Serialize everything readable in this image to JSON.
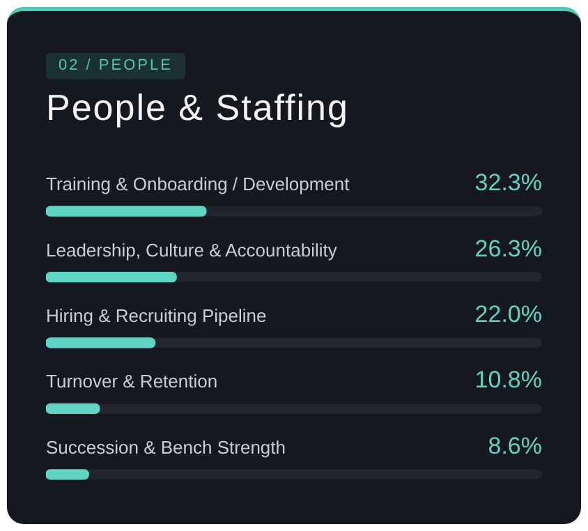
{
  "chart_data": {
    "type": "bar",
    "orientation": "horizontal",
    "title": "People & Staffing",
    "subtitle": "02 / PEOPLE",
    "categories": [
      "Training & Onboarding / Development",
      "Leadership, Culture & Accountability",
      "Hiring & Recruiting Pipeline",
      "Turnover & Retention",
      "Succession & Bench Strength"
    ],
    "values": [
      32.3,
      26.3,
      22.0,
      10.8,
      8.6
    ],
    "value_labels": [
      "32.3%",
      "26.3%",
      "22.0%",
      "10.8%",
      "8.6%"
    ],
    "color": "#5fd3c4",
    "xlim": [
      0,
      100
    ],
    "tick_labels": false
  }
}
